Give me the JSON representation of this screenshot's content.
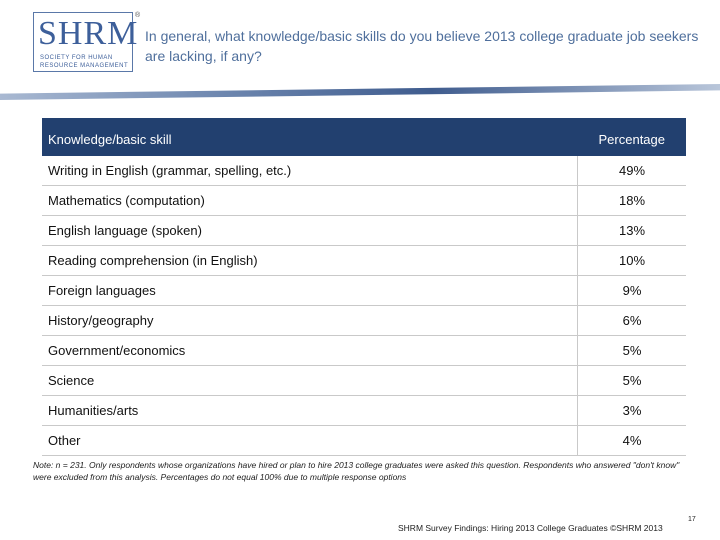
{
  "logo": {
    "name": "SHRM",
    "mark": "®",
    "tagline": [
      "SOCIETY FOR HUMAN",
      "RESOURCE MANAGEMENT"
    ]
  },
  "header": {
    "title": "In general, what knowledge/basic skills do you believe 2013 college graduate job seekers are lacking, if any?"
  },
  "table": {
    "columns": [
      "Knowledge/basic skill",
      "Percentage"
    ],
    "rows": [
      [
        "Writing in English (grammar, spelling, etc.)",
        "49%"
      ],
      [
        "Mathematics (computation)",
        "18%"
      ],
      [
        "English language (spoken)",
        "13%"
      ],
      [
        "Reading comprehension (in English)",
        "10%"
      ],
      [
        "Foreign languages",
        "9%"
      ],
      [
        "History/geography",
        "6%"
      ],
      [
        "Government/economics",
        "5%"
      ],
      [
        "Science",
        "5%"
      ],
      [
        "Humanities/arts",
        "3%"
      ],
      [
        "Other",
        "4%"
      ]
    ]
  },
  "note": "Note: n = 231. Only respondents whose organizations have hired or plan to hire 2013 college graduates were asked this question. Respondents who answered \"don't know\" were excluded from this analysis. Percentages do not equal 100% due to multiple response options",
  "footer": {
    "source": "SHRM Survey Findings: Hiring 2013 College Graduates ©SHRM 2013",
    "page": "17"
  }
}
